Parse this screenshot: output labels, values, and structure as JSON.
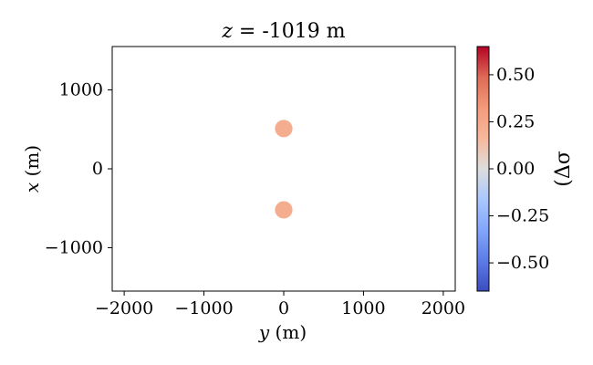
{
  "chart_data": {
    "type": "heatmap",
    "title": {
      "italic": "z",
      "rest": " = -1019 m"
    },
    "xlabel": {
      "italic": "y",
      "rest": " (m)"
    },
    "ylabel": {
      "italic": "x",
      "rest": " (m)"
    },
    "xlim": [
      -2150,
      2150
    ],
    "ylim": [
      -1550,
      1550
    ],
    "xticks": [
      -2000,
      -1000,
      0,
      1000,
      2000
    ],
    "xtick_labels": [
      "−2000",
      "−1000",
      "0",
      "1000",
      "2000"
    ],
    "yticks": [
      -1000,
      0,
      1000
    ],
    "ytick_labels": [
      "−1000",
      "0",
      "1000"
    ],
    "colormap": "coolwarm",
    "clim": [
      -0.65,
      0.65
    ],
    "colorbar": {
      "ticks": [
        -0.5,
        -0.25,
        0.0,
        0.25,
        0.5
      ],
      "tick_labels": [
        "−0.50",
        "−0.25",
        "0.00",
        "0.25",
        "0.50"
      ],
      "label": "(Δσ"
    },
    "blobs": [
      {
        "y": 0,
        "x": 510,
        "radius": 110,
        "value": 0.3,
        "color": "#f4a98a"
      },
      {
        "y": 0,
        "x": -520,
        "radius": 110,
        "value": 0.3,
        "color": "#f4a98a"
      }
    ]
  }
}
